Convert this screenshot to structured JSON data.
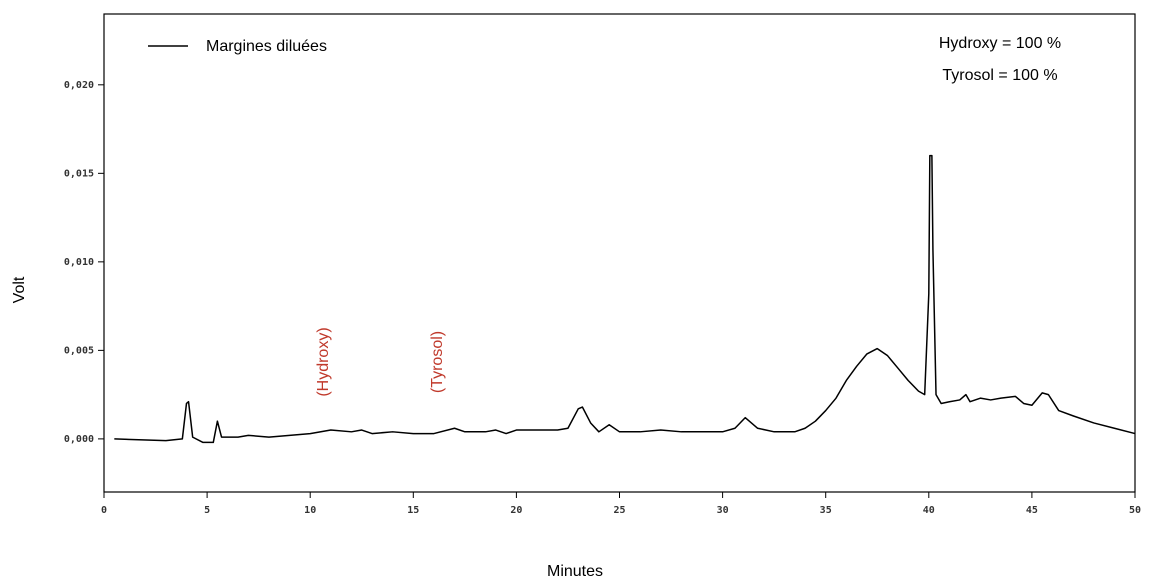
{
  "chart_data": {
    "type": "line",
    "x_label": "Minutes",
    "y_label": "Volt",
    "annotations": [
      "(Hydroxy)",
      "(Tyrosol)"
    ],
    "info": [
      "Hydroxy = 100 %",
      "Tyrosol = 100 %"
    ],
    "legend": "upper left",
    "xlim": [
      0,
      50
    ],
    "xticks": [
      0,
      5,
      10,
      15,
      20,
      25,
      30,
      35,
      40,
      45,
      50
    ],
    "ylim": [
      -0.003,
      0.024
    ],
    "yticks": [
      {
        "value": 0,
        "label": "0,000"
      },
      {
        "value": 0.005,
        "label": "0,005"
      },
      {
        "value": 0.01,
        "label": "0,010"
      },
      {
        "value": 0.015,
        "label": "0,015"
      },
      {
        "value": 0.02,
        "label": "0,020"
      }
    ],
    "x": [
      0.5,
      3,
      3.8,
      4.0,
      4.1,
      4.3,
      4.8,
      5.3,
      5.5,
      5.7,
      6.5,
      7.0,
      8.0,
      9.0,
      10.0,
      11.0,
      12.0,
      12.5,
      13.0,
      14.0,
      15,
      16,
      17,
      17.5,
      18.5,
      19,
      19.5,
      20,
      21.5,
      22,
      22.5,
      23.0,
      23.2,
      23.6,
      24,
      24.5,
      25,
      26,
      27,
      28,
      30,
      30.6,
      31.1,
      31.7,
      32.5,
      33.5,
      34,
      34.5,
      35,
      35.5,
      36,
      36.5,
      37,
      37.5,
      38,
      38.5,
      39,
      39.5,
      39.8,
      40.0,
      40.05,
      40.15,
      40.2,
      40.35,
      40.6,
      41,
      41.5,
      41.8,
      42,
      42.5,
      43,
      43.5,
      44.2,
      44.6,
      45,
      45.5,
      45.8,
      46.3,
      47,
      48,
      49,
      50
    ],
    "series": [
      {
        "name": "Margines diluées",
        "color": "#000000",
        "values": [
          0.0,
          -0.0001,
          0.0,
          0.002,
          0.0021,
          0.0001,
          -0.0002,
          -0.0002,
          0.001,
          0.0001,
          0.0001,
          0.0002,
          0.0001,
          0.0002,
          0.0003,
          0.0005,
          0.0004,
          0.0005,
          0.0003,
          0.0004,
          0.0003,
          0.0003,
          0.0006,
          0.0004,
          0.0004,
          0.0005,
          0.0003,
          0.0005,
          0.0005,
          0.0005,
          0.0006,
          0.0017,
          0.0018,
          0.0009,
          0.0004,
          0.0008,
          0.0004,
          0.0004,
          0.0005,
          0.0004,
          0.0004,
          0.0006,
          0.0012,
          0.0006,
          0.0004,
          0.0004,
          0.0006,
          0.001,
          0.0016,
          0.0023,
          0.0033,
          0.0041,
          0.0048,
          0.0051,
          0.0047,
          0.004,
          0.0033,
          0.0027,
          0.0025,
          0.0082,
          0.016,
          0.016,
          0.0107,
          0.0025,
          0.002,
          0.0021,
          0.0022,
          0.0025,
          0.0021,
          0.0023,
          0.0022,
          0.0023,
          0.0024,
          0.002,
          0.0019,
          0.0026,
          0.0025,
          0.0016,
          0.0013,
          0.0009,
          0.0006,
          0.0003
        ]
      }
    ]
  }
}
